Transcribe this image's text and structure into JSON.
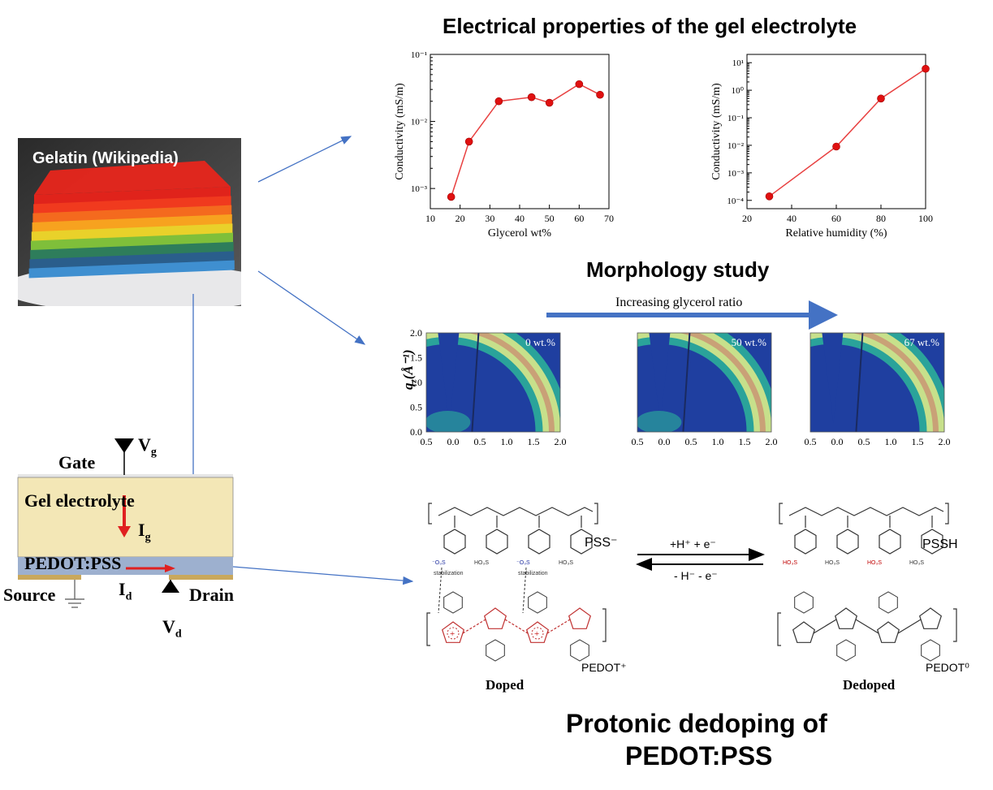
{
  "headings": {
    "electrical": "Electrical properties of the gel electrolyte",
    "morphology": "Morphology study",
    "dedoping_line1": "Protonic dedoping of",
    "dedoping_line2": "PEDOT:PSS"
  },
  "gelatin": {
    "caption": "Gelatin (Wikipedia)",
    "layer_colors": [
      "#e0231b",
      "#f03a1e",
      "#f46a1e",
      "#f7a21f",
      "#e9d12a",
      "#7fbf3a",
      "#2e7d5b",
      "#2a5e8c",
      "#3f8fd0"
    ]
  },
  "device": {
    "gate": "Gate",
    "vg": "V",
    "vg_sub": "g",
    "gel": "Gel electrolyte",
    "ig": "I",
    "ig_sub": "g",
    "pedot": "PEDOT:PSS",
    "id": "I",
    "id_sub": "d",
    "source": "Source",
    "drain": "Drain",
    "vd": "V",
    "vd_sub": "d",
    "colors": {
      "gel": "#f3e7b6",
      "pedot": "#9db0cf",
      "contact": "#c9a85c",
      "current": "#e02020"
    }
  },
  "morphology": {
    "arrow_label": "Increasing glycerol ratio",
    "ylabel": "q",
    "ylabel_sub": "z",
    "ylabel_unit": "(Å⁻¹)",
    "yticks": [
      "2.0",
      "1.5",
      "1.0",
      "0.5",
      "0.0"
    ],
    "xticks": [
      "0.5",
      "0.0",
      "0.5",
      "1.0",
      "1.5",
      "2.0"
    ],
    "panels": [
      "0  wt.%",
      "50 wt.%",
      "67 wt.%"
    ]
  },
  "chemistry": {
    "pss_minus": "PSS⁻",
    "pssh": "PSSH",
    "pedot_plus": "PEDOT⁺",
    "pedot_zero": "PEDOT⁰",
    "forward": "+H⁺ + e⁻",
    "reverse": "- H⁻ -  e⁻",
    "doped": "Doped",
    "dedoped": "Dedoped",
    "stabilization": "stabilization",
    "so3_minus": "⁻O₃S",
    "ho3s": "HO₃S"
  },
  "chart_data": [
    {
      "type": "line",
      "xlabel": "Glycerol wt%",
      "ylabel": "Conductivity (mS/m)",
      "xlim": [
        10,
        70
      ],
      "ylim": [
        0.0005,
        0.1
      ],
      "yscale": "log",
      "xticks": [
        10,
        20,
        30,
        40,
        50,
        60,
        70
      ],
      "yticks": [
        "10⁻³",
        "10⁻²",
        "10⁻¹"
      ],
      "x": [
        17,
        23,
        33,
        44,
        50,
        60,
        67
      ],
      "y": [
        0.00075,
        0.005,
        0.02,
        0.023,
        0.019,
        0.036,
        0.025
      ],
      "marker_color": "#e01010",
      "line_color": "#e84040"
    },
    {
      "type": "line",
      "xlabel": "Relative humidity (%)",
      "ylabel": "Conductivity (mS/m)",
      "xlim": [
        20,
        100
      ],
      "ylim": [
        5e-05,
        20
      ],
      "yscale": "log",
      "xticks": [
        20,
        40,
        60,
        80,
        100
      ],
      "yticks": [
        "10⁻⁴",
        "10⁻³",
        "10⁻²",
        "10⁻¹",
        "10⁰",
        "10¹"
      ],
      "x": [
        30,
        60,
        80,
        100
      ],
      "y": [
        0.00014,
        0.009,
        0.5,
        6
      ],
      "marker_color": "#e01010",
      "line_color": "#e84040"
    }
  ]
}
